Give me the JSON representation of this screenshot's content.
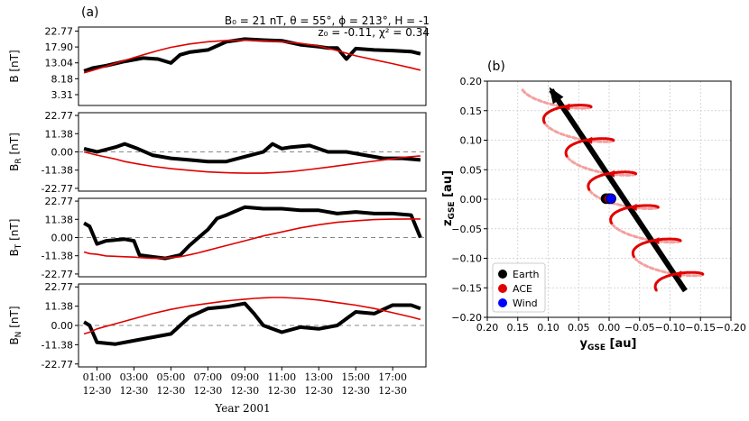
{
  "panel_a": {
    "tag": "(a)",
    "annotation_line1": "B₀ = 21 nT, θ = 55°, ϕ = 213°, H = -1",
    "annotation_line2": "z₀ = -0.11, χ² = 0.34",
    "xlabel": "Year 2001",
    "x_ticks": [
      {
        "time": "01:00",
        "date": "12-30"
      },
      {
        "time": "03:00",
        "date": "12-30"
      },
      {
        "time": "05:00",
        "date": "12-30"
      },
      {
        "time": "07:00",
        "date": "12-30"
      },
      {
        "time": "09:00",
        "date": "12-30"
      },
      {
        "time": "11:00",
        "date": "12-30"
      },
      {
        "time": "13:00",
        "date": "12-30"
      },
      {
        "time": "15:00",
        "date": "12-30"
      },
      {
        "time": "17:00",
        "date": "12-30"
      }
    ]
  },
  "panel_b": {
    "tag": "(b)",
    "xlabel_main": "y",
    "xlabel_sub": "GSE",
    "xlabel_unit": " [au]",
    "ylabel_main": "z",
    "ylabel_sub": "GSE",
    "ylabel_unit": " [au]",
    "legend": [
      {
        "label": "Earth",
        "color": "#000000"
      },
      {
        "label": "ACE",
        "color": "#e00000"
      },
      {
        "label": "Wind",
        "color": "#0000ff"
      }
    ]
  },
  "chart_data": [
    {
      "type": "line",
      "panel": "a1",
      "ylabel": "B [nT]",
      "ylim": [
        0,
        24
      ],
      "y_ticks": [
        "22.77",
        "17.90",
        "13.04",
        "8.18",
        "3.31"
      ],
      "y_tick_values": [
        22.77,
        17.9,
        13.04,
        8.18,
        3.31
      ],
      "x": [
        0.3,
        0.8,
        1.5,
        2.5,
        3.5,
        4.3,
        5.0,
        5.5,
        6.0,
        7.0,
        8.0,
        9.0,
        10.0,
        11.0,
        12.0,
        13.0,
        13.5,
        14.0,
        14.5,
        15.0,
        16.0,
        17.0,
        18.0,
        18.5
      ],
      "series": [
        {
          "name": "observed",
          "color": "#000000",
          "values": [
            10.5,
            11.5,
            12.2,
            13.5,
            14.5,
            14.2,
            13.0,
            15.5,
            16.3,
            17.0,
            19.5,
            20.3,
            20.0,
            19.8,
            18.6,
            18.0,
            17.6,
            17.6,
            14.2,
            17.4,
            17.0,
            16.8,
            16.5,
            15.8
          ]
        },
        {
          "name": "model",
          "color": "#e00000",
          "values": [
            10.0,
            10.8,
            12.0,
            13.8,
            15.5,
            16.8,
            17.8,
            18.3,
            18.8,
            19.5,
            19.9,
            20.0,
            19.8,
            19.5,
            19.0,
            18.2,
            17.5,
            16.8,
            16.0,
            15.2,
            14.0,
            12.8,
            11.5,
            10.8
          ]
        }
      ]
    },
    {
      "type": "line",
      "panel": "a2",
      "ylabel": "B_R [nT]",
      "ylim": [
        -24.5,
        24.5
      ],
      "y_ticks": [
        "22.77",
        "11.38",
        "0.00",
        "-11.38",
        "-22.77"
      ],
      "y_tick_values": [
        22.77,
        11.38,
        0.0,
        -11.38,
        -22.77
      ],
      "x": [
        0.3,
        1.0,
        2.0,
        2.5,
        3.2,
        4.0,
        5.0,
        6.0,
        7.0,
        8.0,
        9.0,
        10.0,
        10.5,
        11.0,
        11.5,
        12.5,
        13.5,
        14.5,
        15.5,
        16.5,
        17.5,
        18.5
      ],
      "series": [
        {
          "name": "observed",
          "color": "#000000",
          "values": [
            2.0,
            0.0,
            3.0,
            5.0,
            2.0,
            -2.0,
            -4.0,
            -5.0,
            -6.0,
            -6.0,
            -3.0,
            0.0,
            5.0,
            2.0,
            3.0,
            4.0,
            0.0,
            0.0,
            -2.0,
            -4.0,
            -4.0,
            -5.0
          ]
        },
        {
          "name": "model",
          "color": "#e00000",
          "values": [
            0.0,
            -2.0,
            -4.5,
            -6.0,
            -7.5,
            -9.0,
            -10.5,
            -11.5,
            -12.5,
            -13.0,
            -13.3,
            -13.3,
            -13.0,
            -12.7,
            -12.3,
            -11.0,
            -9.5,
            -8.0,
            -6.5,
            -5.0,
            -3.5,
            -2.5
          ]
        }
      ]
    },
    {
      "type": "line",
      "panel": "a3",
      "ylabel": "B_T [nT]",
      "ylim": [
        -24.5,
        24.5
      ],
      "y_ticks": [
        "22.77",
        "11.38",
        "0.00",
        "-11.38",
        "-22.77"
      ],
      "y_tick_values": [
        22.77,
        11.38,
        0.0,
        -11.38,
        -22.77
      ],
      "x": [
        0.3,
        0.6,
        1.0,
        1.5,
        2.5,
        3.0,
        3.3,
        4.0,
        4.7,
        5.5,
        6.0,
        6.5,
        7.0,
        7.5,
        8.0,
        9.0,
        10.0,
        11.0,
        12.0,
        13.0,
        14.0,
        15.0,
        16.0,
        17.0,
        18.0,
        18.5
      ],
      "series": [
        {
          "name": "observed",
          "color": "#000000",
          "values": [
            9.0,
            7.0,
            -4.0,
            -2.0,
            -1.0,
            -2.0,
            -11.0,
            -12.0,
            -13.0,
            -11.0,
            -5.0,
            0.0,
            5.0,
            12.0,
            14.0,
            19.0,
            18.0,
            18.0,
            17.0,
            17.0,
            15.0,
            16.0,
            15.0,
            15.0,
            14.0,
            0.0
          ]
        },
        {
          "name": "model",
          "color": "#e00000",
          "values": [
            -9.0,
            -10.0,
            -10.5,
            -11.5,
            -12.0,
            -12.2,
            -12.5,
            -13.0,
            -12.8,
            -12.0,
            -10.8,
            -9.5,
            -8.0,
            -6.5,
            -5.0,
            -2.0,
            1.0,
            3.5,
            6.0,
            8.0,
            9.5,
            10.5,
            11.2,
            11.5,
            11.6,
            11.6
          ]
        }
      ]
    },
    {
      "type": "line",
      "panel": "a4",
      "ylabel": "B_N [nT]",
      "ylim": [
        -24.5,
        24.5
      ],
      "y_ticks": [
        "22.77",
        "11.38",
        "0.00",
        "-11.38",
        "-22.77"
      ],
      "y_tick_values": [
        22.77,
        11.38,
        0.0,
        -11.38,
        -22.77
      ],
      "x": [
        0.3,
        0.6,
        1.0,
        2.0,
        3.0,
        4.0,
        5.0,
        6.0,
        7.0,
        8.0,
        9.0,
        9.5,
        10.0,
        10.5,
        11.0,
        12.0,
        13.0,
        14.0,
        15.0,
        16.0,
        17.0,
        18.0,
        18.5
      ],
      "series": [
        {
          "name": "observed",
          "color": "#000000",
          "values": [
            2.0,
            0.0,
            -10.0,
            -11.0,
            -9.0,
            -7.0,
            -5.0,
            5.0,
            10.0,
            11.0,
            13.0,
            7.0,
            0.0,
            -2.0,
            -4.0,
            -1.0,
            -2.0,
            0.0,
            8.0,
            7.0,
            12.0,
            12.0,
            10.0
          ]
        },
        {
          "name": "model",
          "color": "#e00000",
          "values": [
            -5.0,
            -4.0,
            -2.0,
            1.0,
            4.0,
            7.0,
            9.5,
            11.5,
            13.0,
            14.5,
            15.5,
            16.0,
            16.3,
            16.5,
            16.5,
            16.0,
            15.0,
            13.5,
            12.0,
            10.0,
            7.5,
            5.0,
            3.5
          ]
        }
      ]
    },
    {
      "type": "line",
      "panel": "b",
      "xlim": [
        0.2,
        -0.2
      ],
      "ylim": [
        -0.2,
        0.2
      ],
      "x_ticks": [
        "0.20",
        "0.15",
        "0.10",
        "0.05",
        "0.00",
        "−0.05",
        "−0.10",
        "−0.15",
        "−0.20"
      ],
      "x_tick_values": [
        0.2,
        0.15,
        0.1,
        0.05,
        0.0,
        -0.05,
        -0.1,
        -0.15,
        -0.2
      ],
      "y_ticks": [
        "0.20",
        "0.15",
        "0.10",
        "0.05",
        "0.00",
        "−0.05",
        "−0.10",
        "−0.15",
        "−0.20"
      ],
      "y_tick_values": [
        0.2,
        0.15,
        0.1,
        0.05,
        0.0,
        -0.05,
        -0.1,
        -0.15,
        -0.2
      ],
      "axis_line": {
        "from": [
          -0.125,
          -0.155
        ],
        "to": [
          0.095,
          0.185
        ],
        "color": "#000000"
      },
      "flux_rope_helix": {
        "turns": 6,
        "radius": 0.047,
        "color": "#e00000",
        "back_color": "#f4a0a0"
      },
      "points": [
        {
          "name": "Earth",
          "x": 0.005,
          "y": 0.001,
          "color": "#000000"
        },
        {
          "name": "ACE",
          "x": 0.0,
          "y": 0.001,
          "color": "#e00000"
        },
        {
          "name": "Wind",
          "x": -0.003,
          "y": 0.001,
          "color": "#0000ff"
        }
      ],
      "grid": true,
      "legend_position": "bottom-left"
    }
  ]
}
